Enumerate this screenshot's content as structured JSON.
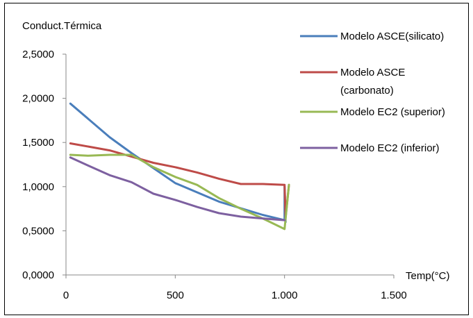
{
  "chart_data": {
    "type": "line",
    "title": "",
    "xlabel": "Temp(°C)",
    "ylabel": "Conduct.Térmica",
    "xlim": [
      0,
      1500
    ],
    "ylim": [
      0,
      2.5
    ],
    "x_ticks": [
      0,
      500,
      1000,
      1500
    ],
    "x_tick_labels": [
      "0",
      "500",
      "1.000",
      "1.500"
    ],
    "y_ticks": [
      0,
      0.5,
      1.0,
      1.5,
      2.0,
      2.5
    ],
    "y_tick_labels": [
      "0,0000",
      "0,5000",
      "1,0000",
      "1,5000",
      "2,0000",
      "2,5000"
    ],
    "grid": false,
    "legend_position": "right",
    "series": [
      {
        "name": "Modelo ASCE(silicato)",
        "color": "#4a7ebb",
        "points": [
          [
            20,
            1.94
          ],
          [
            200,
            1.56
          ],
          [
            300,
            1.38
          ],
          [
            500,
            1.04
          ],
          [
            700,
            0.83
          ],
          [
            900,
            0.68
          ],
          [
            1000,
            0.62
          ],
          [
            1000,
            1.0
          ],
          [
            1005,
            0.6
          ]
        ]
      },
      {
        "name": "Modelo ASCE (carbonato)",
        "color": "#be4b48",
        "points": [
          [
            20,
            1.49
          ],
          [
            200,
            1.41
          ],
          [
            300,
            1.34
          ],
          [
            400,
            1.27
          ],
          [
            500,
            1.22
          ],
          [
            600,
            1.16
          ],
          [
            700,
            1.09
          ],
          [
            800,
            1.03
          ],
          [
            900,
            1.03
          ],
          [
            1000,
            1.02
          ],
          [
            1005,
            0.65
          ],
          [
            1020,
            1.02
          ]
        ]
      },
      {
        "name": "Modelo EC2 (superior)",
        "color": "#98b954",
        "points": [
          [
            20,
            1.36
          ],
          [
            100,
            1.35
          ],
          [
            200,
            1.36
          ],
          [
            300,
            1.36
          ],
          [
            400,
            1.22
          ],
          [
            500,
            1.11
          ],
          [
            600,
            1.02
          ],
          [
            700,
            0.87
          ],
          [
            800,
            0.75
          ],
          [
            900,
            0.64
          ],
          [
            1000,
            0.52
          ],
          [
            1020,
            1.02
          ]
        ]
      },
      {
        "name": "Modelo EC2 (inferior)",
        "color": "#7d60a0",
        "points": [
          [
            20,
            1.33
          ],
          [
            100,
            1.24
          ],
          [
            200,
            1.13
          ],
          [
            300,
            1.05
          ],
          [
            400,
            0.92
          ],
          [
            500,
            0.85
          ],
          [
            600,
            0.77
          ],
          [
            700,
            0.7
          ],
          [
            800,
            0.66
          ],
          [
            900,
            0.64
          ],
          [
            1000,
            0.62
          ]
        ]
      }
    ]
  }
}
